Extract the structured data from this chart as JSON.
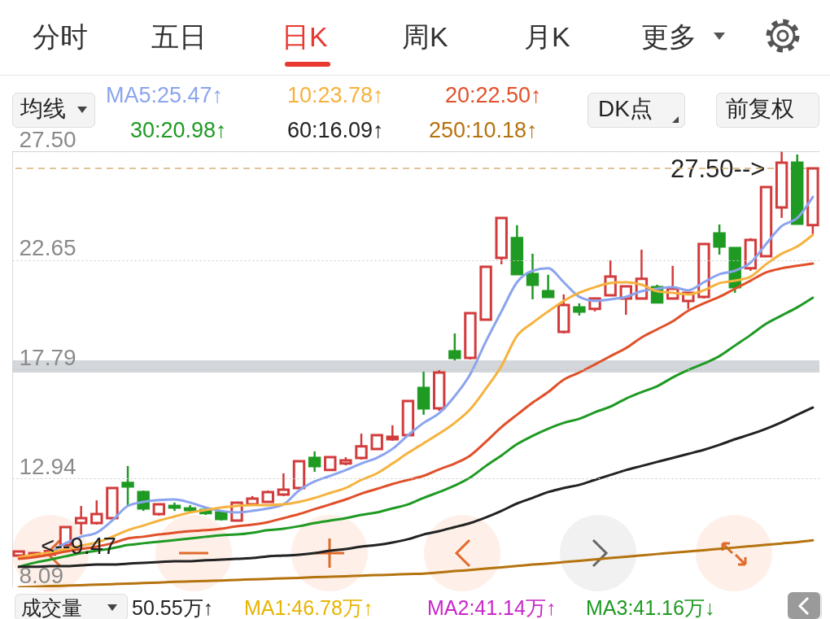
{
  "chart_data": {
    "type": "candlestick",
    "categories": [
      null,
      null,
      null,
      null,
      null,
      null,
      null,
      null,
      null,
      null,
      null,
      null,
      null,
      null,
      null,
      null,
      null,
      null,
      null,
      null,
      null,
      null,
      null,
      null,
      null,
      null,
      null,
      null,
      null,
      null,
      null,
      null,
      null,
      null,
      null,
      null,
      null,
      null,
      null,
      null,
      null,
      null,
      null,
      null,
      null,
      null,
      null,
      null,
      null,
      null,
      null,
      null
    ],
    "ohlc": [
      [
        9.5,
        9.72,
        9.48,
        9.68
      ],
      [
        9.52,
        9.66,
        9.47,
        9.61
      ],
      [
        9.55,
        9.76,
        9.5,
        9.7
      ],
      [
        9.97,
        10.77,
        9.97,
        10.77
      ],
      [
        10.95,
        11.71,
        10.44,
        11.17
      ],
      [
        10.95,
        11.96,
        10.88,
        11.35
      ],
      [
        11.17,
        12.51,
        11.13,
        12.51
      ],
      [
        12.73,
        13.49,
        11.71,
        12.58
      ],
      [
        12.33,
        12.4,
        11.49,
        11.6
      ],
      [
        11.35,
        11.78,
        11.28,
        11.78
      ],
      [
        11.71,
        11.86,
        11.49,
        11.64
      ],
      [
        11.6,
        11.75,
        11.42,
        11.53
      ],
      [
        11.53,
        11.6,
        11.31,
        11.39
      ],
      [
        11.42,
        11.49,
        11.06,
        11.13
      ],
      [
        11.06,
        11.86,
        11.06,
        11.86
      ],
      [
        11.78,
        12.15,
        11.71,
        12.04
      ],
      [
        11.89,
        12.4,
        11.86,
        12.33
      ],
      [
        12.22,
        13.16,
        12.15,
        12.44
      ],
      [
        12.51,
        13.7,
        12.51,
        13.7
      ],
      [
        13.85,
        14.14,
        13.23,
        13.49
      ],
      [
        13.31,
        13.88,
        13.31,
        13.88
      ],
      [
        13.6,
        13.88,
        13.52,
        13.74
      ],
      [
        13.85,
        14.93,
        13.78,
        14.36
      ],
      [
        14.25,
        14.86,
        14.25,
        14.86
      ],
      [
        14.68,
        15.3,
        14.61,
        14.79
      ],
      [
        14.86,
        16.38,
        14.86,
        16.38
      ],
      [
        16.96,
        17.69,
        15.77,
        16.06
      ],
      [
        16.06,
        17.76,
        15.95,
        17.65
      ],
      [
        18.59,
        19.39,
        18.19,
        18.3
      ],
      [
        18.3,
        20.29,
        18.23,
        20.29
      ],
      [
        20.0,
        22.36,
        20.0,
        22.36
      ],
      [
        22.76,
        24.53,
        22.47,
        24.53
      ],
      [
        23.63,
        24.21,
        22.03,
        22.03
      ],
      [
        22.03,
        22.94,
        20.91,
        21.56
      ],
      [
        21.27,
        22.0,
        21.02,
        21.02
      ],
      [
        19.46,
        21.13,
        19.39,
        20.66
      ],
      [
        20.55,
        20.73,
        20.19,
        20.37
      ],
      [
        20.48,
        20.95,
        20.37,
        20.95
      ],
      [
        21.09,
        22.65,
        21.09,
        21.92
      ],
      [
        20.95,
        21.49,
        20.22,
        21.49
      ],
      [
        20.95,
        23.12,
        20.95,
        21.82
      ],
      [
        21.45,
        21.56,
        20.73,
        20.77
      ],
      [
        20.95,
        22.4,
        20.95,
        21.38
      ],
      [
        20.84,
        21.2,
        20.48,
        21.2
      ],
      [
        21.02,
        23.37,
        20.95,
        23.37
      ],
      [
        23.84,
        24.24,
        22.9,
        23.26
      ],
      [
        23.19,
        23.19,
        21.2,
        21.45
      ],
      [
        22.29,
        23.63,
        22.18,
        23.55
      ],
      [
        22.83,
        25.91,
        22.83,
        25.91
      ],
      [
        25.0,
        27.5,
        24.53,
        26.99
      ],
      [
        26.99,
        27.36,
        24.28,
        24.28
      ],
      [
        24.21,
        26.74,
        23.81,
        26.74
      ]
    ],
    "colors": [
      "#d23b3b",
      "#d23b3b",
      "#d23b3b",
      "#d23b3b",
      "#d23b3b",
      "#d23b3b",
      "#d23b3b",
      "#1f9a23",
      "#1f9a23",
      "#d23b3b",
      "#1f9a23",
      "#1f9a23",
      "#1f9a23",
      "#1f9a23",
      "#d23b3b",
      "#d23b3b",
      "#d23b3b",
      "#d23b3b",
      "#d23b3b",
      "#1f9a23",
      "#d23b3b",
      "#d23b3b",
      "#d23b3b",
      "#d23b3b",
      "#d23b3b",
      "#d23b3b",
      "#1f9a23",
      "#d23b3b",
      "#1f9a23",
      "#d23b3b",
      "#d23b3b",
      "#d23b3b",
      "#1f9a23",
      "#1f9a23",
      "#1f9a23",
      "#d23b3b",
      "#1f9a23",
      "#d23b3b",
      "#d23b3b",
      "#d23b3b",
      "#d23b3b",
      "#1f9a23",
      "#d23b3b",
      "#d23b3b",
      "#d23b3b",
      "#1f9a23",
      "#1f9a23",
      "#d23b3b",
      "#d23b3b",
      "#d23b3b",
      "#1f9a23",
      "#d23b3b"
    ],
    "series": [
      {
        "type": "line",
        "name": "MA5:25.47↑",
        "color": "#8aa4ee",
        "values": [
          null,
          null,
          9.61,
          10.05,
          10.34,
          10.52,
          11.06,
          11.71,
          11.89,
          11.97,
          12.0,
          11.86,
          11.64,
          11.49,
          11.42,
          11.49,
          11.6,
          11.78,
          12.4,
          12.8,
          13.05,
          13.31,
          13.6,
          13.85,
          14.25,
          14.86,
          15.41,
          15.84,
          16.6,
          17.58,
          19.03,
          20.37,
          21.67,
          22.18,
          22.29,
          21.67,
          21.02,
          20.84,
          20.91,
          21.02,
          21.27,
          21.38,
          21.45,
          21.31,
          21.67,
          22.03,
          22.18,
          22.54,
          23.37,
          24.17,
          24.53,
          25.47
        ]
      },
      {
        "type": "line",
        "name": "10:23.78↑",
        "color": "#f6b23e",
        "values": [
          9.43,
          9.54,
          9.65,
          9.79,
          9.94,
          10.08,
          10.34,
          10.63,
          10.84,
          11.06,
          11.24,
          11.42,
          11.53,
          11.64,
          11.71,
          11.75,
          11.75,
          11.78,
          11.89,
          12.07,
          12.29,
          12.51,
          12.87,
          13.16,
          13.6,
          14.07,
          14.5,
          14.93,
          15.41,
          16.02,
          16.93,
          17.94,
          19.28,
          19.86,
          20.37,
          20.84,
          21.2,
          21.45,
          21.63,
          21.67,
          21.56,
          21.27,
          21.2,
          21.13,
          21.31,
          21.63,
          21.74,
          21.92,
          22.47,
          22.94,
          23.26,
          23.78
        ]
      },
      {
        "type": "line",
        "name": "20:22.50↑",
        "color": "#e0502a",
        "values": [
          9.36,
          9.43,
          9.54,
          9.68,
          9.79,
          9.9,
          10.05,
          10.26,
          10.34,
          10.44,
          10.52,
          10.59,
          10.63,
          10.7,
          10.81,
          10.88,
          10.99,
          11.17,
          11.35,
          11.57,
          11.78,
          12.0,
          12.26,
          12.47,
          12.69,
          12.87,
          13.05,
          13.34,
          13.6,
          13.96,
          14.57,
          15.22,
          15.77,
          16.31,
          16.78,
          17.33,
          17.65,
          18.01,
          18.38,
          18.74,
          19.21,
          19.57,
          19.93,
          20.4,
          20.73,
          21.02,
          21.38,
          21.74,
          22.11,
          22.29,
          22.4,
          22.5
        ]
      },
      {
        "type": "line",
        "name": "30:20.98↑",
        "color": "#1f9a23",
        "values": [
          9.0,
          9.18,
          9.32,
          9.47,
          9.61,
          9.72,
          9.83,
          9.97,
          10.05,
          10.12,
          10.19,
          10.26,
          10.34,
          10.41,
          10.44,
          10.52,
          10.63,
          10.7,
          10.81,
          10.95,
          11.06,
          11.17,
          11.31,
          11.42,
          11.6,
          11.78,
          12.07,
          12.33,
          12.62,
          12.98,
          13.49,
          13.96,
          14.46,
          14.83,
          15.15,
          15.41,
          15.59,
          15.88,
          16.13,
          16.49,
          16.78,
          17.04,
          17.43,
          17.76,
          18.05,
          18.38,
          18.85,
          19.32,
          19.82,
          20.19,
          20.55,
          20.98
        ]
      },
      {
        "type": "line",
        "name": "60:16.09↑",
        "color": "#222222",
        "values": [
          9.0,
          9.0,
          9.03,
          9.03,
          9.07,
          9.1,
          9.1,
          9.14,
          9.18,
          9.21,
          9.25,
          9.25,
          9.29,
          9.32,
          9.36,
          9.39,
          9.47,
          9.5,
          9.54,
          9.61,
          9.72,
          9.79,
          9.9,
          9.97,
          10.08,
          10.23,
          10.44,
          10.59,
          10.77,
          10.95,
          11.2,
          11.49,
          11.82,
          12.07,
          12.33,
          12.51,
          12.65,
          12.87,
          13.09,
          13.31,
          13.49,
          13.67,
          13.85,
          14.03,
          14.21,
          14.43,
          14.68,
          14.9,
          15.15,
          15.44,
          15.77,
          16.09
        ]
      },
      {
        "type": "line",
        "name": "250:10.18↑",
        "color": "#b5730f",
        "values": [
          8.09,
          8.11,
          8.14,
          8.16,
          8.18,
          8.21,
          8.23,
          8.25,
          8.28,
          8.3,
          8.33,
          8.35,
          8.37,
          8.39,
          8.42,
          8.44,
          8.46,
          8.49,
          8.51,
          8.54,
          8.56,
          8.58,
          8.61,
          8.63,
          8.65,
          8.68,
          8.7,
          8.75,
          8.81,
          8.86,
          8.92,
          8.98,
          9.04,
          9.1,
          9.15,
          9.21,
          9.27,
          9.33,
          9.39,
          9.45,
          9.51,
          9.57,
          9.63,
          9.68,
          9.74,
          9.8,
          9.86,
          9.92,
          9.98,
          10.04,
          10.1,
          10.18
        ]
      }
    ],
    "ylim": [
      8.09,
      27.5
    ],
    "yticks": [
      8.09,
      12.94,
      17.79,
      22.65,
      {
        "value": 27.5,
        "label": "27.50"
      }
    ],
    "ref_lines": [
      {
        "axis": "y",
        "value": 26.74,
        "color": "#d8b07a",
        "line_style": "dashed"
      }
    ],
    "bands": [
      {
        "axis": "y",
        "from": 17.65,
        "to": 18.19,
        "color": "#d3d6da"
      }
    ],
    "grid": "y",
    "legend": "top",
    "tick_labels": "y",
    "annotations": [
      "分时",
      "五日",
      "日K",
      "周K",
      "月K",
      "更多",
      "均线",
      "DK点",
      "前复权",
      "成交量",
      "50.55万↑",
      "MA1:46.78万↑",
      "MA2:41.14万↑",
      "MA3:41.16万↓",
      "27.50-->",
      {
        "text": "<--9.47",
        "y": 9.47
      }
    ]
  }
}
